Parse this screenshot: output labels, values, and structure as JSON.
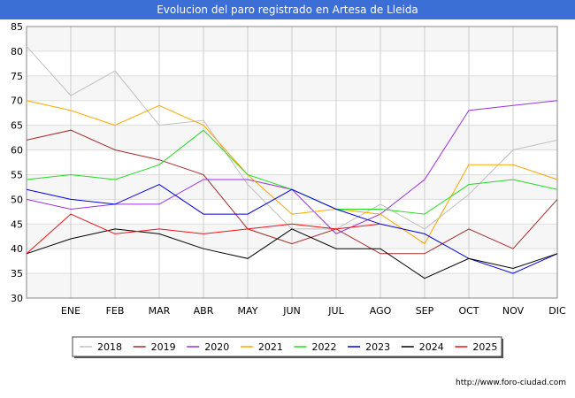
{
  "title": "Evolucion del paro registrado en Artesa de Lleida",
  "footer_url": "http://www.foro-ciudad.com",
  "chart_data": {
    "type": "line",
    "title": "Evolucion del paro registrado en Artesa de Lleida",
    "xlabel": "",
    "ylabel": "",
    "ylim": [
      30,
      85
    ],
    "yticks": [
      30,
      35,
      40,
      45,
      50,
      55,
      60,
      65,
      70,
      75,
      80,
      85
    ],
    "x": [
      "",
      "ENE",
      "FEB",
      "MAR",
      "ABR",
      "MAY",
      "JUN",
      "JUL",
      "AGO",
      "SEP",
      "OCT",
      "NOV",
      "DIC"
    ],
    "legend_position": "bottom",
    "grid": true,
    "series": [
      {
        "name": "2018",
        "color": "#c0c0c0",
        "values": [
          81,
          71,
          76,
          65,
          66,
          53,
          44,
          44,
          49,
          44,
          51,
          60,
          62
        ]
      },
      {
        "name": "2019",
        "color": "#a52a2a",
        "values": [
          62,
          64,
          60,
          58,
          55,
          44,
          41,
          44,
          39,
          39,
          44,
          40,
          50
        ]
      },
      {
        "name": "2020",
        "color": "#9b30e0",
        "values": [
          50,
          48,
          49,
          49,
          54,
          54,
          52,
          43,
          47,
          54,
          68,
          69,
          70
        ]
      },
      {
        "name": "2021",
        "color": "#ffa500",
        "values": [
          70,
          68,
          65,
          69,
          65,
          55,
          47,
          48,
          47,
          41,
          57,
          57,
          54
        ]
      },
      {
        "name": "2022",
        "color": "#22dd22",
        "values": [
          54,
          55,
          54,
          57,
          64,
          55,
          52,
          48,
          48,
          47,
          53,
          54,
          52
        ]
      },
      {
        "name": "2023",
        "color": "#0000dd",
        "values": [
          52,
          50,
          49,
          53,
          47,
          47,
          52,
          48,
          45,
          43,
          38,
          35,
          39
        ]
      },
      {
        "name": "2024",
        "color": "#000000",
        "values": [
          39,
          42,
          44,
          43,
          40,
          38,
          44,
          40,
          40,
          34,
          38,
          36,
          39
        ]
      },
      {
        "name": "2025",
        "color": "#ee1111",
        "values": [
          39,
          47,
          43,
          44,
          43,
          44,
          45,
          44,
          45,
          null,
          null,
          null,
          null
        ]
      }
    ]
  }
}
